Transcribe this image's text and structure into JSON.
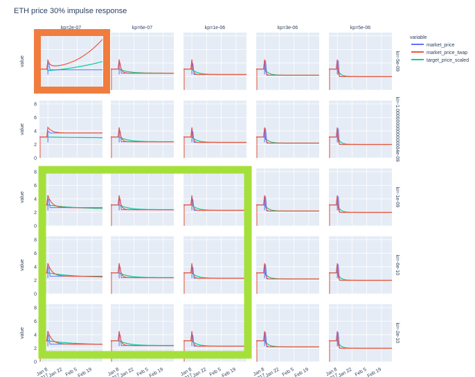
{
  "chart_data": {
    "type": "line",
    "title": "ETH price 30% impulse response",
    "ylabel": "value",
    "ylim": [
      0,
      8.5
    ],
    "yticks": [
      "0",
      "2",
      "4",
      "6",
      "8"
    ],
    "xticks": [
      "Jan 8\n2017",
      "Jan 22",
      "Feb 5",
      "Feb 19"
    ],
    "grid": true,
    "legend": {
      "title": "variable",
      "placement": "top-right",
      "entries": [
        "market_price",
        "market_price_twap",
        "target_price_scaled"
      ]
    },
    "colors": {
      "market_price": "#636efa",
      "market_price_twap": "#ef553b",
      "target_price_scaled": "#00cc96",
      "plot_bg": "#e5ecf6",
      "highlight_orange": "#f07c3e",
      "highlight_green": "#a5e03a"
    },
    "columns": [
      "kp=2e-07",
      "kp=6e-07",
      "kp=1e-06",
      "kp=3e-06",
      "kp=5e-06"
    ],
    "rows": [
      "ki=-5e-09",
      "ki=-1.0000000000000004e-09",
      "ki=-1e-09",
      "ki=-6e-10",
      "ki=-2e-10"
    ],
    "series_model": {
      "x_range_days": [
        0,
        60
      ],
      "impulse_day": 8,
      "base_market_price": 3.1,
      "impulse_peak_multiplier": 1.3
    },
    "panels": [
      [
        {
          "settle": 7.5,
          "target_end": 4.2,
          "unstable": true
        },
        {
          "settle": 2.5,
          "target_end": 2.5
        },
        {
          "settle": 2.3,
          "target_end": 2.3
        },
        {
          "settle": 2.2,
          "target_end": 2.2
        },
        {
          "settle": 2.0,
          "target_end": 2.0
        }
      ],
      [
        {
          "settle": 3.7,
          "target_end": 3.0
        },
        {
          "settle": 2.4,
          "target_end": 2.4
        },
        {
          "settle": 2.3,
          "target_end": 2.3
        },
        {
          "settle": 2.2,
          "target_end": 2.2
        },
        {
          "settle": 2.0,
          "target_end": 2.0
        }
      ],
      [
        {
          "settle": 2.7,
          "target_end": 2.5
        },
        {
          "settle": 2.4,
          "target_end": 2.4
        },
        {
          "settle": 2.3,
          "target_end": 2.3
        },
        {
          "settle": 2.2,
          "target_end": 2.2
        },
        {
          "settle": 2.0,
          "target_end": 2.0
        }
      ],
      [
        {
          "settle": 2.6,
          "target_end": 2.4
        },
        {
          "settle": 2.4,
          "target_end": 2.4
        },
        {
          "settle": 2.3,
          "target_end": 2.3
        },
        {
          "settle": 2.2,
          "target_end": 2.2
        },
        {
          "settle": 2.0,
          "target_end": 2.0
        }
      ],
      [
        {
          "settle": 2.6,
          "target_end": 2.5
        },
        {
          "settle": 2.4,
          "target_end": 2.4
        },
        {
          "settle": 2.3,
          "target_end": 2.3
        },
        {
          "settle": 2.2,
          "target_end": 2.2
        },
        {
          "settle": 2.0,
          "target_end": 2.0
        }
      ]
    ]
  }
}
